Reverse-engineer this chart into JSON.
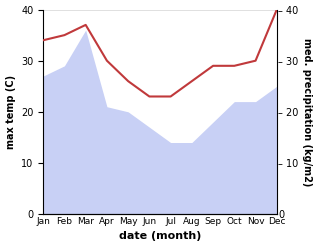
{
  "months": [
    "Jan",
    "Feb",
    "Mar",
    "Apr",
    "May",
    "Jun",
    "Jul",
    "Aug",
    "Sep",
    "Oct",
    "Nov",
    "Dec"
  ],
  "max_temp": [
    27,
    29,
    36,
    21,
    20,
    17,
    14,
    14,
    18,
    22,
    22,
    25
  ],
  "precipitation": [
    34,
    35,
    37,
    30,
    26,
    23,
    23,
    26,
    29,
    29,
    30,
    40
  ],
  "temp_fill_color": "#c8d0f5",
  "precip_color": "#c0393b",
  "ylabel_left": "max temp (C)",
  "ylabel_right": "med. precipitation (kg/m2)",
  "xlabel": "date (month)",
  "ylim_left": [
    0,
    40
  ],
  "ylim_right": [
    0,
    40
  ],
  "yticks_left": [
    0,
    10,
    20,
    30,
    40
  ],
  "yticks_right": [
    0,
    10,
    20,
    30,
    40
  ],
  "background_color": "#ffffff"
}
